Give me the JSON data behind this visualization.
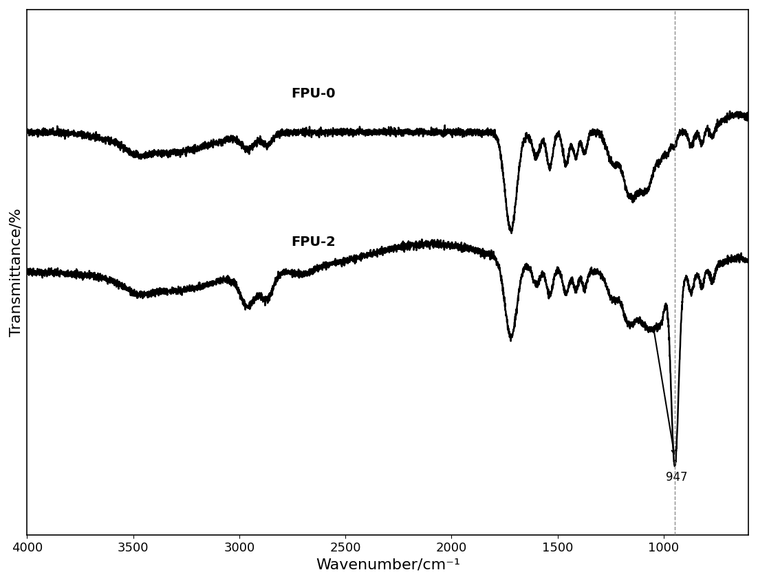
{
  "title": "",
  "xlabel": "Wavenumber/cm⁻¹",
  "ylabel": "Transmittance/%",
  "xmin": 600,
  "xmax": 4000,
  "line_color": "#000000",
  "background_color": "#ffffff",
  "label_fpu0": "FPU-0",
  "label_fpu2": "FPU-2",
  "annotation_947": "947",
  "xlabel_fontsize": 16,
  "ylabel_fontsize": 16,
  "label_fontsize": 14,
  "tick_fontsize": 13
}
